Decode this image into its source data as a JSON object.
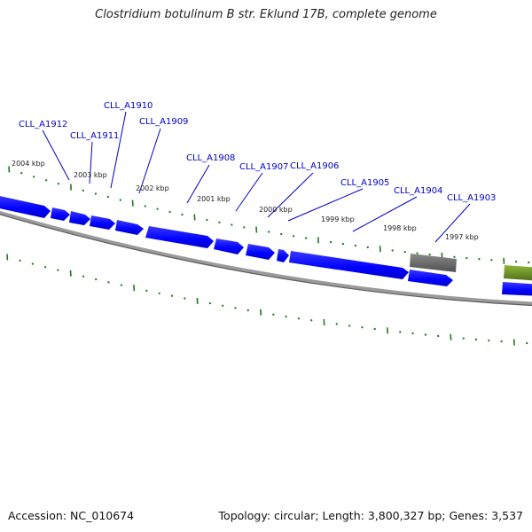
{
  "title": "Clostridium botulinum B str. Eklund 17B, complete genome",
  "footer": {
    "accession_label": "Accession:",
    "accession": "NC_010674",
    "topology_label": "Topology:",
    "topology": "circular",
    "length_label": "Length:",
    "length": "3,800,327 bp",
    "genes_label": "Genes:",
    "genes": "3,537"
  },
  "colors": {
    "gene_forward": "#0000ff",
    "gene_other": "#6b6b6b",
    "gene_rna": "#6b8e23",
    "backbone": "#888888",
    "tick": "#1e7a1e",
    "gene_label": "#0000cc",
    "leader_line": "#0000cc"
  },
  "ticks": [
    {
      "label": "2004 kbp"
    },
    {
      "label": "2003 kbp"
    },
    {
      "label": "2002 kbp"
    },
    {
      "label": "2001 kbp"
    },
    {
      "label": "2000 kbp"
    },
    {
      "label": "1999 kbp"
    },
    {
      "label": "1998 kbp"
    },
    {
      "label": "1997 kbp"
    }
  ],
  "genes": [
    {
      "label": "CLL_A1912"
    },
    {
      "label": "CLL_A1911"
    },
    {
      "label": "CLL_A1910"
    },
    {
      "label": "CLL_A1909"
    },
    {
      "label": "CLL_A1908"
    },
    {
      "label": "CLL_A1907"
    },
    {
      "label": "CLL_A1906"
    },
    {
      "label": "CLL_A1905"
    },
    {
      "label": "CLL_A1904"
    },
    {
      "label": "CLL_A1903"
    }
  ]
}
